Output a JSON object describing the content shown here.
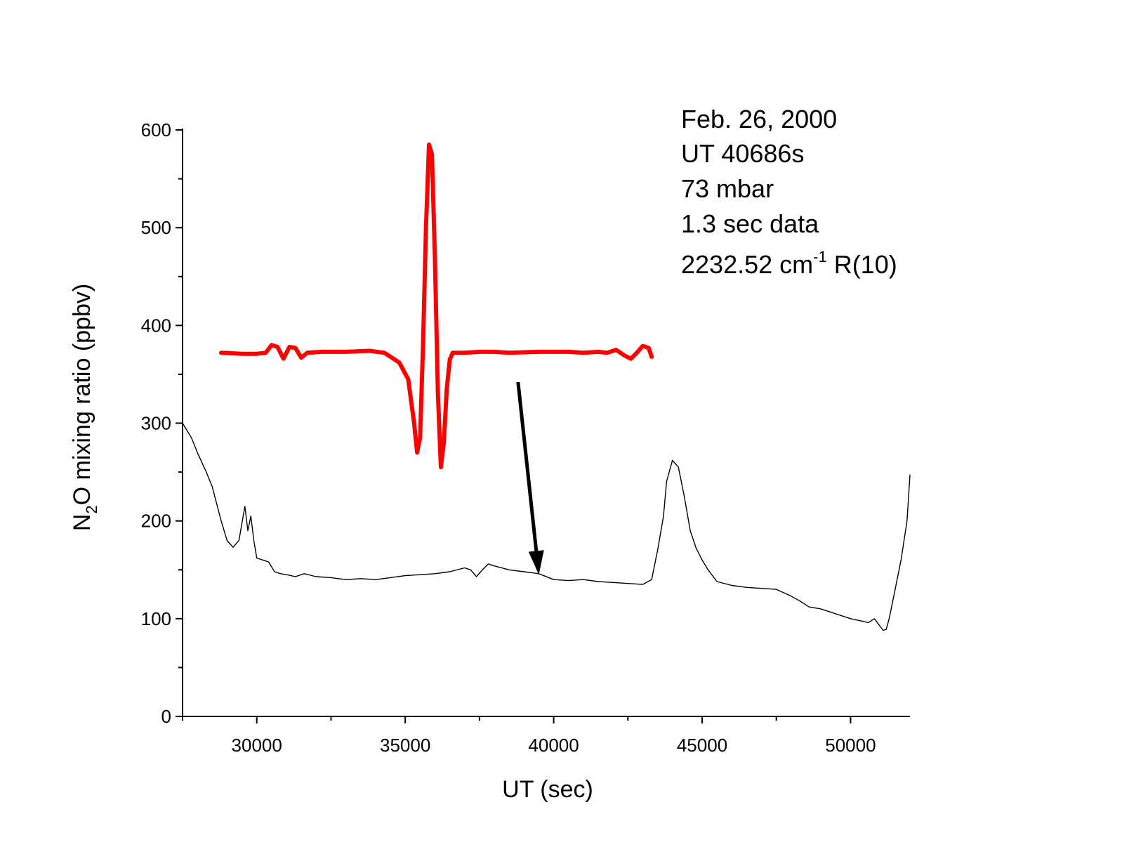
{
  "chart_data": {
    "type": "line",
    "xlabel": "UT (sec)",
    "ylabel": {
      "parts": [
        "N",
        "2",
        "O mixing ratio (ppbv)"
      ]
    },
    "xlim": [
      27500,
      52000
    ],
    "ylim": [
      0,
      600
    ],
    "x_ticks": [
      30000,
      35000,
      40000,
      45000,
      50000
    ],
    "x_minor_ticks": [
      27500,
      32500,
      37500,
      42500,
      47500
    ],
    "y_ticks": [
      0,
      100,
      200,
      300,
      400,
      500,
      600
    ],
    "y_minor_ticks": [
      50,
      150,
      250,
      350,
      450,
      550
    ],
    "grid": false,
    "annotations": {
      "line1": "Feb. 26, 2000",
      "line2": "UT 40686s",
      "line3": "73 mbar",
      "line4": "1.3 sec data",
      "line5_main": "2232.52 cm",
      "line5_sup": "-1",
      "line5_tail": " R(10)"
    },
    "arrow": {
      "from": [
        38800,
        342
      ],
      "to": [
        39500,
        145
      ]
    },
    "series": [
      {
        "color": "#000000",
        "x": [
          27500,
          27800,
          28000,
          28300,
          28500,
          28800,
          29000,
          29200,
          29400,
          29600,
          29700,
          29800,
          29900,
          30000,
          30200,
          30400,
          30600,
          30800,
          31000,
          31300,
          31600,
          32000,
          32500,
          33000,
          33500,
          34000,
          34500,
          35000,
          35500,
          36000,
          36500,
          37000,
          37200,
          37400,
          37600,
          37800,
          38000,
          38500,
          39000,
          39500,
          40000,
          40500,
          41000,
          41500,
          42000,
          42500,
          43000,
          43300,
          43500,
          43700,
          43800,
          44000,
          44200,
          44400,
          44600,
          44800,
          45000,
          45200,
          45500,
          46000,
          46500,
          47000,
          47500,
          48000,
          48300,
          48600,
          49000,
          49500,
          50000,
          50300,
          50600,
          50800,
          51000,
          51100,
          51200,
          51300,
          51500,
          51700,
          51900,
          52000
        ],
        "y": [
          300,
          285,
          270,
          250,
          235,
          200,
          180,
          173,
          180,
          215,
          190,
          205,
          180,
          162,
          160,
          158,
          148,
          146,
          145,
          143,
          146,
          143,
          142,
          140,
          141,
          140,
          142,
          144,
          145,
          146,
          148,
          152,
          150,
          143,
          150,
          156,
          154,
          150,
          148,
          146,
          140,
          139,
          140,
          138,
          137,
          136,
          135,
          140,
          170,
          205,
          240,
          262,
          255,
          225,
          190,
          172,
          160,
          150,
          138,
          134,
          132,
          131,
          130,
          123,
          118,
          112,
          110,
          105,
          100,
          98,
          96,
          100,
          92,
          88,
          89,
          100,
          130,
          160,
          200,
          247
        ]
      },
      {
        "color": "#ff0000",
        "x": [
          28800,
          29500,
          30000,
          30300,
          30500,
          30700,
          30900,
          31100,
          31300,
          31500,
          31700,
          32200,
          33000,
          33800,
          34300,
          34800,
          35100,
          35300,
          35400,
          35500,
          35600,
          35700,
          35800,
          35900,
          36000,
          36100,
          36200,
          36300,
          36400,
          36500,
          36600,
          36700,
          37000,
          37500,
          38000,
          38500,
          39500,
          40500,
          41000,
          41500,
          41800,
          42100,
          42400,
          42600,
          42800,
          43000,
          43200,
          43300
        ],
        "y": [
          372,
          371,
          371,
          372,
          380,
          378,
          366,
          378,
          377,
          367,
          372,
          373,
          373,
          374,
          372,
          362,
          345,
          300,
          270,
          285,
          380,
          500,
          585,
          575,
          470,
          330,
          255,
          280,
          335,
          365,
          372,
          372,
          372,
          373,
          373,
          372,
          373,
          373,
          372,
          373,
          372,
          375,
          369,
          366,
          372,
          379,
          377,
          368
        ]
      }
    ]
  }
}
